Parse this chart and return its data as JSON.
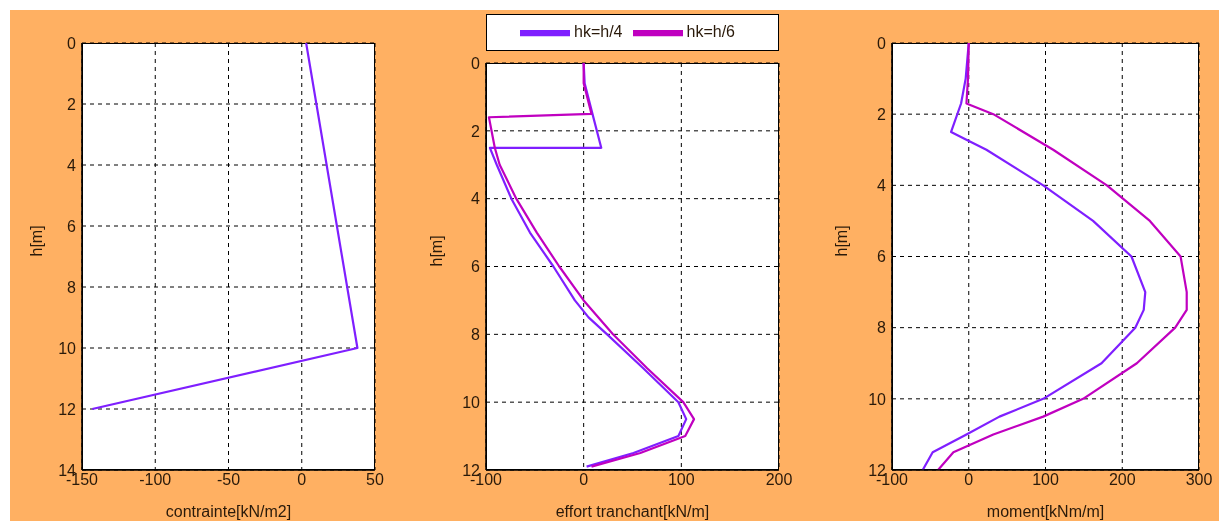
{
  "chart_data": [
    {
      "type": "line",
      "xlabel": "contrainte[kN/m2]",
      "ylabel": "h[m]",
      "xlim": [
        -150,
        50
      ],
      "xticks": [
        -150,
        -100,
        -50,
        0,
        50
      ],
      "ylim": [
        14,
        0
      ],
      "yticks": [
        0,
        2,
        4,
        6,
        8,
        10,
        12,
        14
      ],
      "grid": true,
      "legend": false,
      "series": [
        {
          "color": "#7f1fff",
          "x": [
            3,
            38,
            -143
          ],
          "values": [
            0,
            10,
            12
          ]
        }
      ]
    },
    {
      "type": "line",
      "xlabel": "effort tranchant[kN/m]",
      "ylabel": "h[m]",
      "xlim": [
        -100,
        200
      ],
      "xticks": [
        -100,
        0,
        100,
        200
      ],
      "ylim": [
        12,
        0
      ],
      "yticks": [
        0,
        2,
        4,
        6,
        8,
        10,
        12
      ],
      "grid": true,
      "legend": "top",
      "series": [
        {
          "name": "hk=h/4",
          "color": "#7f1fff",
          "x": [
            0,
            1,
            9,
            18,
            -96,
            -89,
            -74,
            -55,
            -31,
            -9,
            5,
            24,
            61,
            97,
            105,
            97,
            51,
            3
          ],
          "values": [
            0,
            0.6,
            1.5,
            2.5,
            2.5,
            3,
            4,
            5,
            6,
            7,
            7.5,
            8,
            9,
            10,
            10.5,
            11,
            11.5,
            11.9
          ]
        },
        {
          "name": "hk=h/6",
          "color": "#c000c0",
          "x": [
            0,
            0,
            8,
            -97,
            -91,
            -86,
            -69,
            -48,
            -25,
            0,
            30,
            65,
            102,
            113,
            104,
            58,
            8
          ],
          "values": [
            0,
            0.6,
            1.5,
            1.6,
            2.5,
            3,
            4,
            5,
            6,
            7,
            8,
            9,
            10,
            10.5,
            11,
            11.5,
            11.9
          ]
        }
      ]
    },
    {
      "type": "line",
      "xlabel": "moment[kNm/m]",
      "ylabel": "h[m]",
      "xlim": [
        -100,
        300
      ],
      "xticks": [
        -100,
        0,
        100,
        200,
        300
      ],
      "ylim": [
        12,
        0
      ],
      "yticks": [
        0,
        2,
        4,
        6,
        8,
        10,
        12
      ],
      "grid": true,
      "legend": false,
      "series": [
        {
          "color": "#7f1fff",
          "x": [
            0,
            -4,
            -10,
            -23,
            -5,
            23,
            97,
            162,
            212,
            230,
            228,
            217,
            173,
            97,
            40,
            -3,
            -47,
            -60
          ],
          "values": [
            0,
            1,
            1.7,
            2.5,
            2.7,
            3,
            4,
            5,
            6,
            7,
            7.5,
            8,
            9,
            10,
            10.5,
            11,
            11.5,
            12
          ]
        },
        {
          "color": "#c000c0",
          "x": [
            0,
            -1,
            -3,
            32,
            110,
            180,
            236,
            276,
            284,
            284,
            269,
            219,
            149,
            97,
            32,
            -20,
            -40
          ],
          "values": [
            0,
            1,
            1.7,
            2,
            3,
            4,
            5,
            6,
            7,
            7.5,
            8,
            9,
            10,
            10.5,
            11,
            11.5,
            12
          ]
        }
      ]
    }
  ]
}
